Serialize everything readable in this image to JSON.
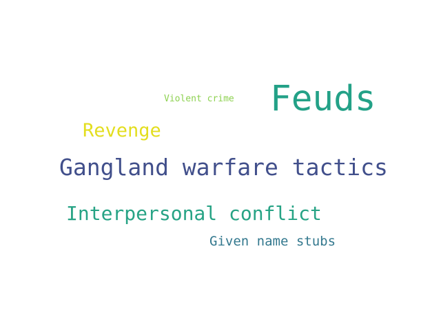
{
  "words": [
    {
      "text": "Feuds",
      "color": "#23a187"
    },
    {
      "text": "Violent crime",
      "color": "#8dd150"
    },
    {
      "text": "Revenge",
      "color": "#e3de1f"
    },
    {
      "text": "Gangland warfare tactics",
      "color": "#414f8b"
    },
    {
      "text": "Interpersonal conflict",
      "color": "#27a385"
    },
    {
      "text": "Given name stubs",
      "color": "#33788e"
    }
  ]
}
